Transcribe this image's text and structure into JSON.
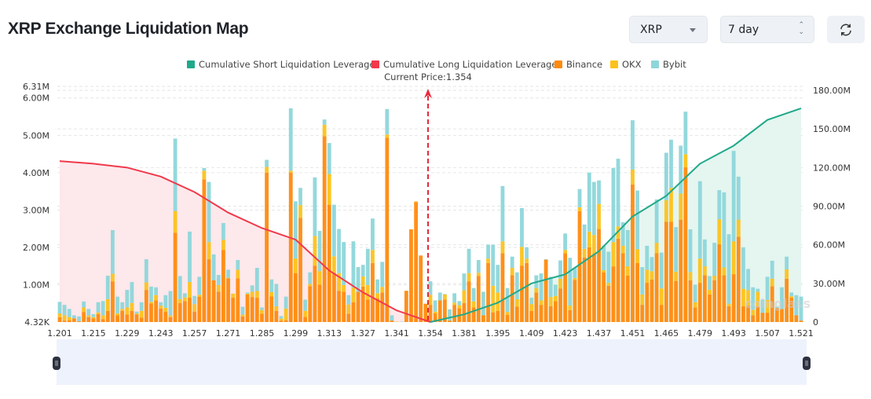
{
  "header": {
    "title": "XRP Exchange Liquidation Map",
    "symbol_select": "XRP",
    "range_select": "7 day",
    "refresh_icon": "refresh-icon"
  },
  "watermark": "coinglass",
  "chart_data": {
    "type": "bar",
    "title": "",
    "legend_placement": "top-center",
    "legend": [
      "Cumulative Short Liquidation Leverage",
      "Cumulative Long Liquidation Leverage",
      "Binance",
      "OKX",
      "Bybit"
    ],
    "colors": {
      "short": "#1fa98a",
      "long": "#f0394b",
      "binance": "#ff8a0d",
      "okx": "#fcc21b",
      "bybit": "#8dd6da",
      "short_fill": "#e5f5ef",
      "long_fill": "#fde8eb"
    },
    "current_price_label": "Current Price:1.354",
    "current_price": 1.354,
    "x_tick_labels": [
      "1.201",
      "1.215",
      "1.229",
      "1.243",
      "1.257",
      "1.271",
      "1.285",
      "1.299",
      "1.313",
      "1.327",
      "1.341",
      "1.354",
      "1.381",
      "1.395",
      "1.409",
      "1.423",
      "1.437",
      "1.451",
      "1.465",
      "1.479",
      "1.493",
      "1.507",
      "1.521"
    ],
    "bars_per_tick": 7,
    "y_left": {
      "ticks": [
        "4.32K",
        "1.00M",
        "2.00M",
        "3.00M",
        "4.00M",
        "5.00M",
        "6.00M",
        "6.31M"
      ],
      "tick_values_m": [
        0.00432,
        1,
        2,
        3,
        4,
        5,
        6,
        6.31
      ],
      "range_m": [
        0.00432,
        6.31
      ]
    },
    "y_right": {
      "ticks": [
        "0",
        "30.00M",
        "60.00M",
        "90.00M",
        "120.00M",
        "150.00M",
        "180.00M"
      ],
      "tick_values_m": [
        0,
        30,
        60,
        90,
        120,
        150,
        180
      ],
      "range_m": [
        0,
        180
      ]
    },
    "series": [
      {
        "name": "Binance",
        "unit": "M",
        "values": [
          0.13,
          0.04,
          0.05,
          0.1,
          0.02,
          0.27,
          0.13,
          0.1,
          0.21,
          0.08,
          0.3,
          1.09,
          0.18,
          0.3,
          0.2,
          0.3,
          0.2,
          0.12,
          0.86,
          0.5,
          0.58,
          0.36,
          0.28,
          0.13,
          2.39,
          0.51,
          0.56,
          0.65,
          0.28,
          0.68,
          3.82,
          1.68,
          1.12,
          0.81,
          1.93,
          1.17,
          0.65,
          1.17,
          0.15,
          0.74,
          0.67,
          0.65,
          0.22,
          4.0,
          0.69,
          0.3,
          0.04,
          0.05,
          4.0,
          1.31,
          2.79,
          0.14,
          0.96,
          1.51,
          1.0,
          4.97,
          3.14,
          1.32,
          0.83,
          0.81,
          0.22,
          0.53,
          0.81,
          0.95,
          0.6,
          1.58,
          0.63,
          0.79,
          4.93,
          0.04,
          0.0,
          0.0,
          0.83,
          2.48,
          3.21,
          1.78,
          0.49,
          0.46,
          0.23,
          0.58,
          0.6,
          0.04,
          0.46,
          0.37,
          0.51,
          1.09,
          0.39,
          1.23,
          0.18,
          1.58,
          0.26,
          0.3,
          1.84,
          0.19,
          1.25,
          0.41,
          1.51,
          1.58,
          0.3,
          0.79,
          0.46,
          1.67,
          0.42,
          0.56,
          0.9,
          1.84,
          0.32,
          1.13,
          2.97,
          1.73,
          2.0,
          1.82,
          2.49,
          1.33,
          0.97,
          1.49,
          2.23,
          1.84,
          1.24,
          3.68,
          1.58,
          0.46,
          1.05,
          1.14,
          1.84,
          0.46,
          2.68,
          2.68,
          1.1,
          2.74,
          4.14,
          1.12,
          0.39,
          1.05,
          1.25,
          0.74,
          1.12,
          2.08,
          1.25,
          0.42,
          1.28,
          2.28,
          0.42,
          0.44,
          0.18,
          0.42,
          0.25,
          0.25,
          0.96,
          0.37,
          0.35,
          1.16,
          0.65,
          0.18,
          0.04
        ]
      },
      {
        "name": "OKX",
        "unit": "M",
        "values": [
          0.1,
          0.14,
          0.08,
          0,
          0,
          0.12,
          0.05,
          0.03,
          0.05,
          0.1,
          0.31,
          0.2,
          0.05,
          0.05,
          0.19,
          0.21,
          0.03,
          0.18,
          0.2,
          0.04,
          0.14,
          0.08,
          0.1,
          0.05,
          0.58,
          0.1,
          0.1,
          0.42,
          0.2,
          0.05,
          0.23,
          0.46,
          0,
          0.18,
          0.27,
          0.02,
          0.11,
          0.23,
          0.05,
          0.02,
          0.14,
          0.18,
          0.1,
          0.15,
          0.11,
          0.12,
          0.05,
          0.31,
          0.05,
          0.39,
          0.34,
          0.16,
          0.06,
          0.79,
          0.36,
          0.31,
          0.82,
          0.44,
          0.48,
          0.18,
          0.25,
          0.39,
          0,
          0.27,
          0.39,
          0.35,
          0.14,
          0.15,
          0.09,
          0,
          0.01,
          0,
          0.01,
          0,
          0.02,
          0,
          0,
          0.27,
          0.05,
          0,
          0.14,
          0,
          0.06,
          0.08,
          0.34,
          0.22,
          0.16,
          0.09,
          0,
          0.12,
          0.71,
          0.49,
          0.32,
          0.08,
          0.2,
          0.2,
          0.5,
          0.12,
          0.18,
          0.12,
          0.12,
          0,
          0.25,
          0.14,
          0.26,
          0.09,
          0.12,
          0.05,
          0.1,
          0.23,
          0.42,
          0.51,
          0.67,
          0.06,
          0.08,
          0.65,
          0.33,
          0.2,
          0.25,
          0.4,
          0.37,
          0.28,
          0.35,
          0.22,
          0.28,
          0.44,
          0.58,
          0.91,
          0.25,
          0.7,
          0.35,
          0.22,
          0.14,
          0.65,
          0.24,
          0.12,
          0.12,
          0.67,
          0.21,
          0.07,
          0.88,
          0.46,
          0.47,
          0.41,
          0.15,
          0.39,
          0,
          0.34,
          0.2,
          0,
          0,
          0.25,
          0.04,
          0,
          0
        ]
      },
      {
        "name": "Bybit",
        "unit": "M",
        "values": [
          0.31,
          0.28,
          0.22,
          0.08,
          0.13,
          0.16,
          0.17,
          0.08,
          0.27,
          0.38,
          0.63,
          1.17,
          0.45,
          0.18,
          0.47,
          0.56,
          0.05,
          0.23,
          0.62,
          0.41,
          0.21,
          0.09,
          0.34,
          0.65,
          1.94,
          0.62,
          0.11,
          1.35,
          0.22,
          0.48,
          0.07,
          1.61,
          0.69,
          0.27,
          0.45,
          0.21,
          0,
          0.26,
          0.21,
          0.03,
          0.17,
          0.62,
          0.07,
          0.19,
          0.34,
          0.6,
          0.07,
          0.32,
          1.67,
          1.53,
          0.46,
          0.3,
          0.31,
          1.57,
          1.08,
          0.14,
          0.83,
          1.38,
          1.18,
          1.15,
          0.25,
          1.24,
          0.66,
          0.31,
          0.97,
          0.84,
          0.37,
          0.67,
          0.68,
          0.14,
          0,
          0.01,
          0,
          0,
          0,
          0,
          0,
          0.36,
          0.3,
          0.21,
          0.01,
          0.3,
          0.25,
          0.11,
          0.45,
          0.65,
          0.36,
          0.34,
          0.63,
          0.37,
          1.1,
          0.74,
          1.48,
          0.64,
          0.3,
          0.72,
          1.04,
          0.3,
          0.17,
          0.34,
          0.72,
          0.01,
          0.54,
          0.3,
          0.49,
          0.44,
          1.28,
          0.28,
          0.49,
          0.65,
          1.58,
          1.42,
          0.63,
          0.65,
          0.83,
          1.98,
          1.81,
          0.63,
          0.97,
          1.32,
          1.57,
          0.73,
          0.64,
          0.38,
          1.16,
          0.96,
          1.27,
          1.29,
          1.19,
          1.28,
          1.14,
          1.14,
          0.47,
          2.07,
          0.72,
          0.37,
          0.88,
          0.78,
          2.01,
          1.86,
          2.42,
          1.15,
          1.11,
          0.57,
          0.6,
          0.08,
          0.35,
          0.62,
          0.48,
          0.04,
          0.58,
          0.34,
          0.1,
          0.54,
          0.64
        ]
      }
    ],
    "cumulative_long": {
      "name": "Cumulative Long Liquidation Leverage",
      "unit": "M",
      "x": [
        "1.201",
        "1.215",
        "1.229",
        "1.243",
        "1.257",
        "1.271",
        "1.285",
        "1.299",
        "1.313",
        "1.327",
        "1.341",
        "1.354"
      ],
      "values": [
        125,
        123,
        120,
        113,
        101,
        85,
        73,
        64,
        40,
        23,
        9,
        0
      ]
    },
    "cumulative_short": {
      "name": "Cumulative Short Liquidation Leverage",
      "unit": "M",
      "x": [
        "1.354",
        "1.381",
        "1.395",
        "1.409",
        "1.423",
        "1.437",
        "1.451",
        "1.465",
        "1.479",
        "1.493",
        "1.507",
        "1.521"
      ],
      "values": [
        0,
        6,
        15,
        30,
        37,
        55,
        82,
        98,
        123,
        137,
        157,
        166
      ]
    }
  }
}
